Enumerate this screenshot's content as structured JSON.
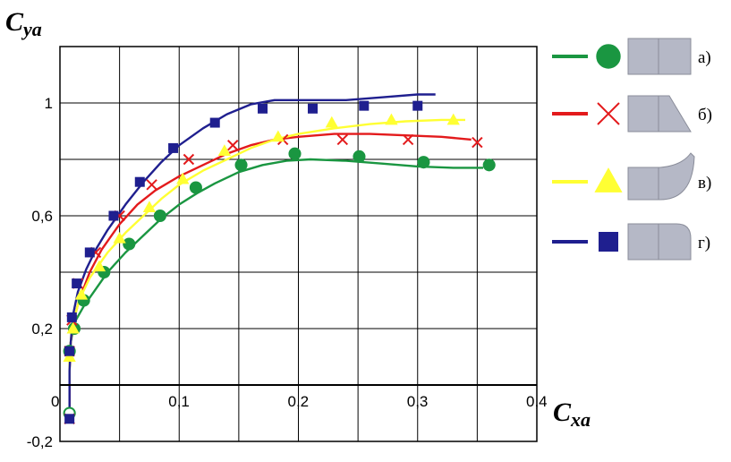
{
  "chart_data": {
    "type": "line",
    "title": "",
    "xlabel_main": "C",
    "xlabel_sub": "xa",
    "ylabel_main": "C",
    "ylabel_sub": "ya",
    "xlim": [
      0,
      0.4
    ],
    "ylim": [
      -0.2,
      1.2
    ],
    "x_ticks": [
      {
        "value": 0,
        "label": "0"
      },
      {
        "value": 0.1,
        "label": "0,1"
      },
      {
        "value": 0.2,
        "label": "0,2"
      },
      {
        "value": 0.3,
        "label": "0,3"
      },
      {
        "value": 0.4,
        "label": "0,4"
      }
    ],
    "y_ticks": [
      {
        "value": -0.2,
        "label": "-0,2"
      },
      {
        "value": 0.2,
        "label": "0,2"
      },
      {
        "value": 0.6,
        "label": "0,6"
      },
      {
        "value": 1.0,
        "label": "1"
      }
    ],
    "x_grid": [
      0,
      0.05,
      0.1,
      0.15,
      0.2,
      0.25,
      0.3,
      0.35,
      0.4
    ],
    "y_grid": [
      -0.2,
      0.0,
      0.2,
      0.4,
      0.6,
      0.8,
      1.0,
      1.2
    ],
    "grid": true,
    "legend_position": "right",
    "series": [
      {
        "label": "а)",
        "color": "#1a9641",
        "marker": "circle",
        "shape": "flat",
        "curve": [
          [
            0.008,
            -0.1
          ],
          [
            0.008,
            0.05
          ],
          [
            0.009,
            0.15
          ],
          [
            0.012,
            0.22
          ],
          [
            0.02,
            0.28
          ],
          [
            0.03,
            0.34
          ],
          [
            0.04,
            0.4
          ],
          [
            0.055,
            0.47
          ],
          [
            0.07,
            0.53
          ],
          [
            0.085,
            0.59
          ],
          [
            0.1,
            0.64
          ],
          [
            0.115,
            0.68
          ],
          [
            0.13,
            0.715
          ],
          [
            0.15,
            0.755
          ],
          [
            0.17,
            0.78
          ],
          [
            0.19,
            0.795
          ],
          [
            0.21,
            0.8
          ],
          [
            0.24,
            0.795
          ],
          [
            0.27,
            0.785
          ],
          [
            0.3,
            0.775
          ],
          [
            0.33,
            0.77
          ],
          [
            0.355,
            0.77
          ]
        ],
        "points": [
          [
            0.008,
            -0.1
          ],
          [
            0.008,
            0.12
          ],
          [
            0.012,
            0.2
          ],
          [
            0.02,
            0.3
          ],
          [
            0.037,
            0.4
          ],
          [
            0.058,
            0.5
          ],
          [
            0.084,
            0.6
          ],
          [
            0.114,
            0.7
          ],
          [
            0.152,
            0.78
          ],
          [
            0.197,
            0.82
          ],
          [
            0.251,
            0.81
          ],
          [
            0.305,
            0.79
          ],
          [
            0.36,
            0.78
          ]
        ]
      },
      {
        "label": "б)",
        "color": "#e31a1c",
        "marker": "x",
        "shape": "chamfer",
        "curve": [
          [
            0.008,
            -0.12
          ],
          [
            0.008,
            0.05
          ],
          [
            0.009,
            0.15
          ],
          [
            0.011,
            0.22
          ],
          [
            0.016,
            0.3
          ],
          [
            0.025,
            0.4
          ],
          [
            0.035,
            0.48
          ],
          [
            0.05,
            0.57
          ],
          [
            0.065,
            0.64
          ],
          [
            0.08,
            0.69
          ],
          [
            0.1,
            0.74
          ],
          [
            0.12,
            0.78
          ],
          [
            0.14,
            0.82
          ],
          [
            0.16,
            0.85
          ],
          [
            0.18,
            0.87
          ],
          [
            0.2,
            0.88
          ],
          [
            0.23,
            0.89
          ],
          [
            0.26,
            0.89
          ],
          [
            0.29,
            0.885
          ],
          [
            0.32,
            0.88
          ],
          [
            0.345,
            0.87
          ]
        ],
        "points": [
          [
            0.008,
            -0.12
          ],
          [
            0.008,
            0.12
          ],
          [
            0.01,
            0.23
          ],
          [
            0.015,
            0.36
          ],
          [
            0.03,
            0.47
          ],
          [
            0.05,
            0.6
          ],
          [
            0.077,
            0.71
          ],
          [
            0.108,
            0.8
          ],
          [
            0.145,
            0.85
          ],
          [
            0.187,
            0.87
          ],
          [
            0.237,
            0.87
          ],
          [
            0.292,
            0.87
          ],
          [
            0.35,
            0.86
          ]
        ]
      },
      {
        "label": "в)",
        "color": "#ffff33",
        "marker": "triangle",
        "shape": "flare",
        "curve": [
          [
            0.008,
            0.0
          ],
          [
            0.008,
            0.1
          ],
          [
            0.01,
            0.2
          ],
          [
            0.016,
            0.3
          ],
          [
            0.025,
            0.38
          ],
          [
            0.04,
            0.47
          ],
          [
            0.055,
            0.54
          ],
          [
            0.07,
            0.6
          ],
          [
            0.085,
            0.66
          ],
          [
            0.1,
            0.71
          ],
          [
            0.12,
            0.76
          ],
          [
            0.14,
            0.8
          ],
          [
            0.16,
            0.84
          ],
          [
            0.18,
            0.87
          ],
          [
            0.2,
            0.89
          ],
          [
            0.23,
            0.91
          ],
          [
            0.26,
            0.925
          ],
          [
            0.29,
            0.935
          ],
          [
            0.32,
            0.94
          ],
          [
            0.34,
            0.94
          ]
        ],
        "points": [
          [
            0.008,
            0.1
          ],
          [
            0.011,
            0.2
          ],
          [
            0.018,
            0.32
          ],
          [
            0.033,
            0.42
          ],
          [
            0.05,
            0.52
          ],
          [
            0.075,
            0.63
          ],
          [
            0.103,
            0.73
          ],
          [
            0.138,
            0.83
          ],
          [
            0.183,
            0.88
          ],
          [
            0.228,
            0.93
          ],
          [
            0.278,
            0.94
          ],
          [
            0.33,
            0.94
          ]
        ]
      },
      {
        "label": "г)",
        "color": "#1f1f8f",
        "marker": "square",
        "shape": "round",
        "curve": [
          [
            0.008,
            -0.12
          ],
          [
            0.008,
            0.05
          ],
          [
            0.009,
            0.15
          ],
          [
            0.011,
            0.25
          ],
          [
            0.015,
            0.33
          ],
          [
            0.022,
            0.41
          ],
          [
            0.03,
            0.48
          ],
          [
            0.04,
            0.55
          ],
          [
            0.055,
            0.64
          ],
          [
            0.07,
            0.72
          ],
          [
            0.085,
            0.79
          ],
          [
            0.1,
            0.85
          ],
          [
            0.12,
            0.91
          ],
          [
            0.14,
            0.96
          ],
          [
            0.16,
            0.995
          ],
          [
            0.18,
            1.01
          ],
          [
            0.21,
            1.01
          ],
          [
            0.24,
            1.01
          ],
          [
            0.27,
            1.02
          ],
          [
            0.3,
            1.03
          ],
          [
            0.315,
            1.03
          ]
        ],
        "points": [
          [
            0.008,
            -0.12
          ],
          [
            0.008,
            0.12
          ],
          [
            0.01,
            0.24
          ],
          [
            0.014,
            0.36
          ],
          [
            0.025,
            0.47
          ],
          [
            0.045,
            0.6
          ],
          [
            0.067,
            0.72
          ],
          [
            0.095,
            0.84
          ],
          [
            0.13,
            0.93
          ],
          [
            0.17,
            0.98
          ],
          [
            0.212,
            0.98
          ],
          [
            0.255,
            0.99
          ],
          [
            0.3,
            0.99
          ]
        ]
      }
    ]
  }
}
